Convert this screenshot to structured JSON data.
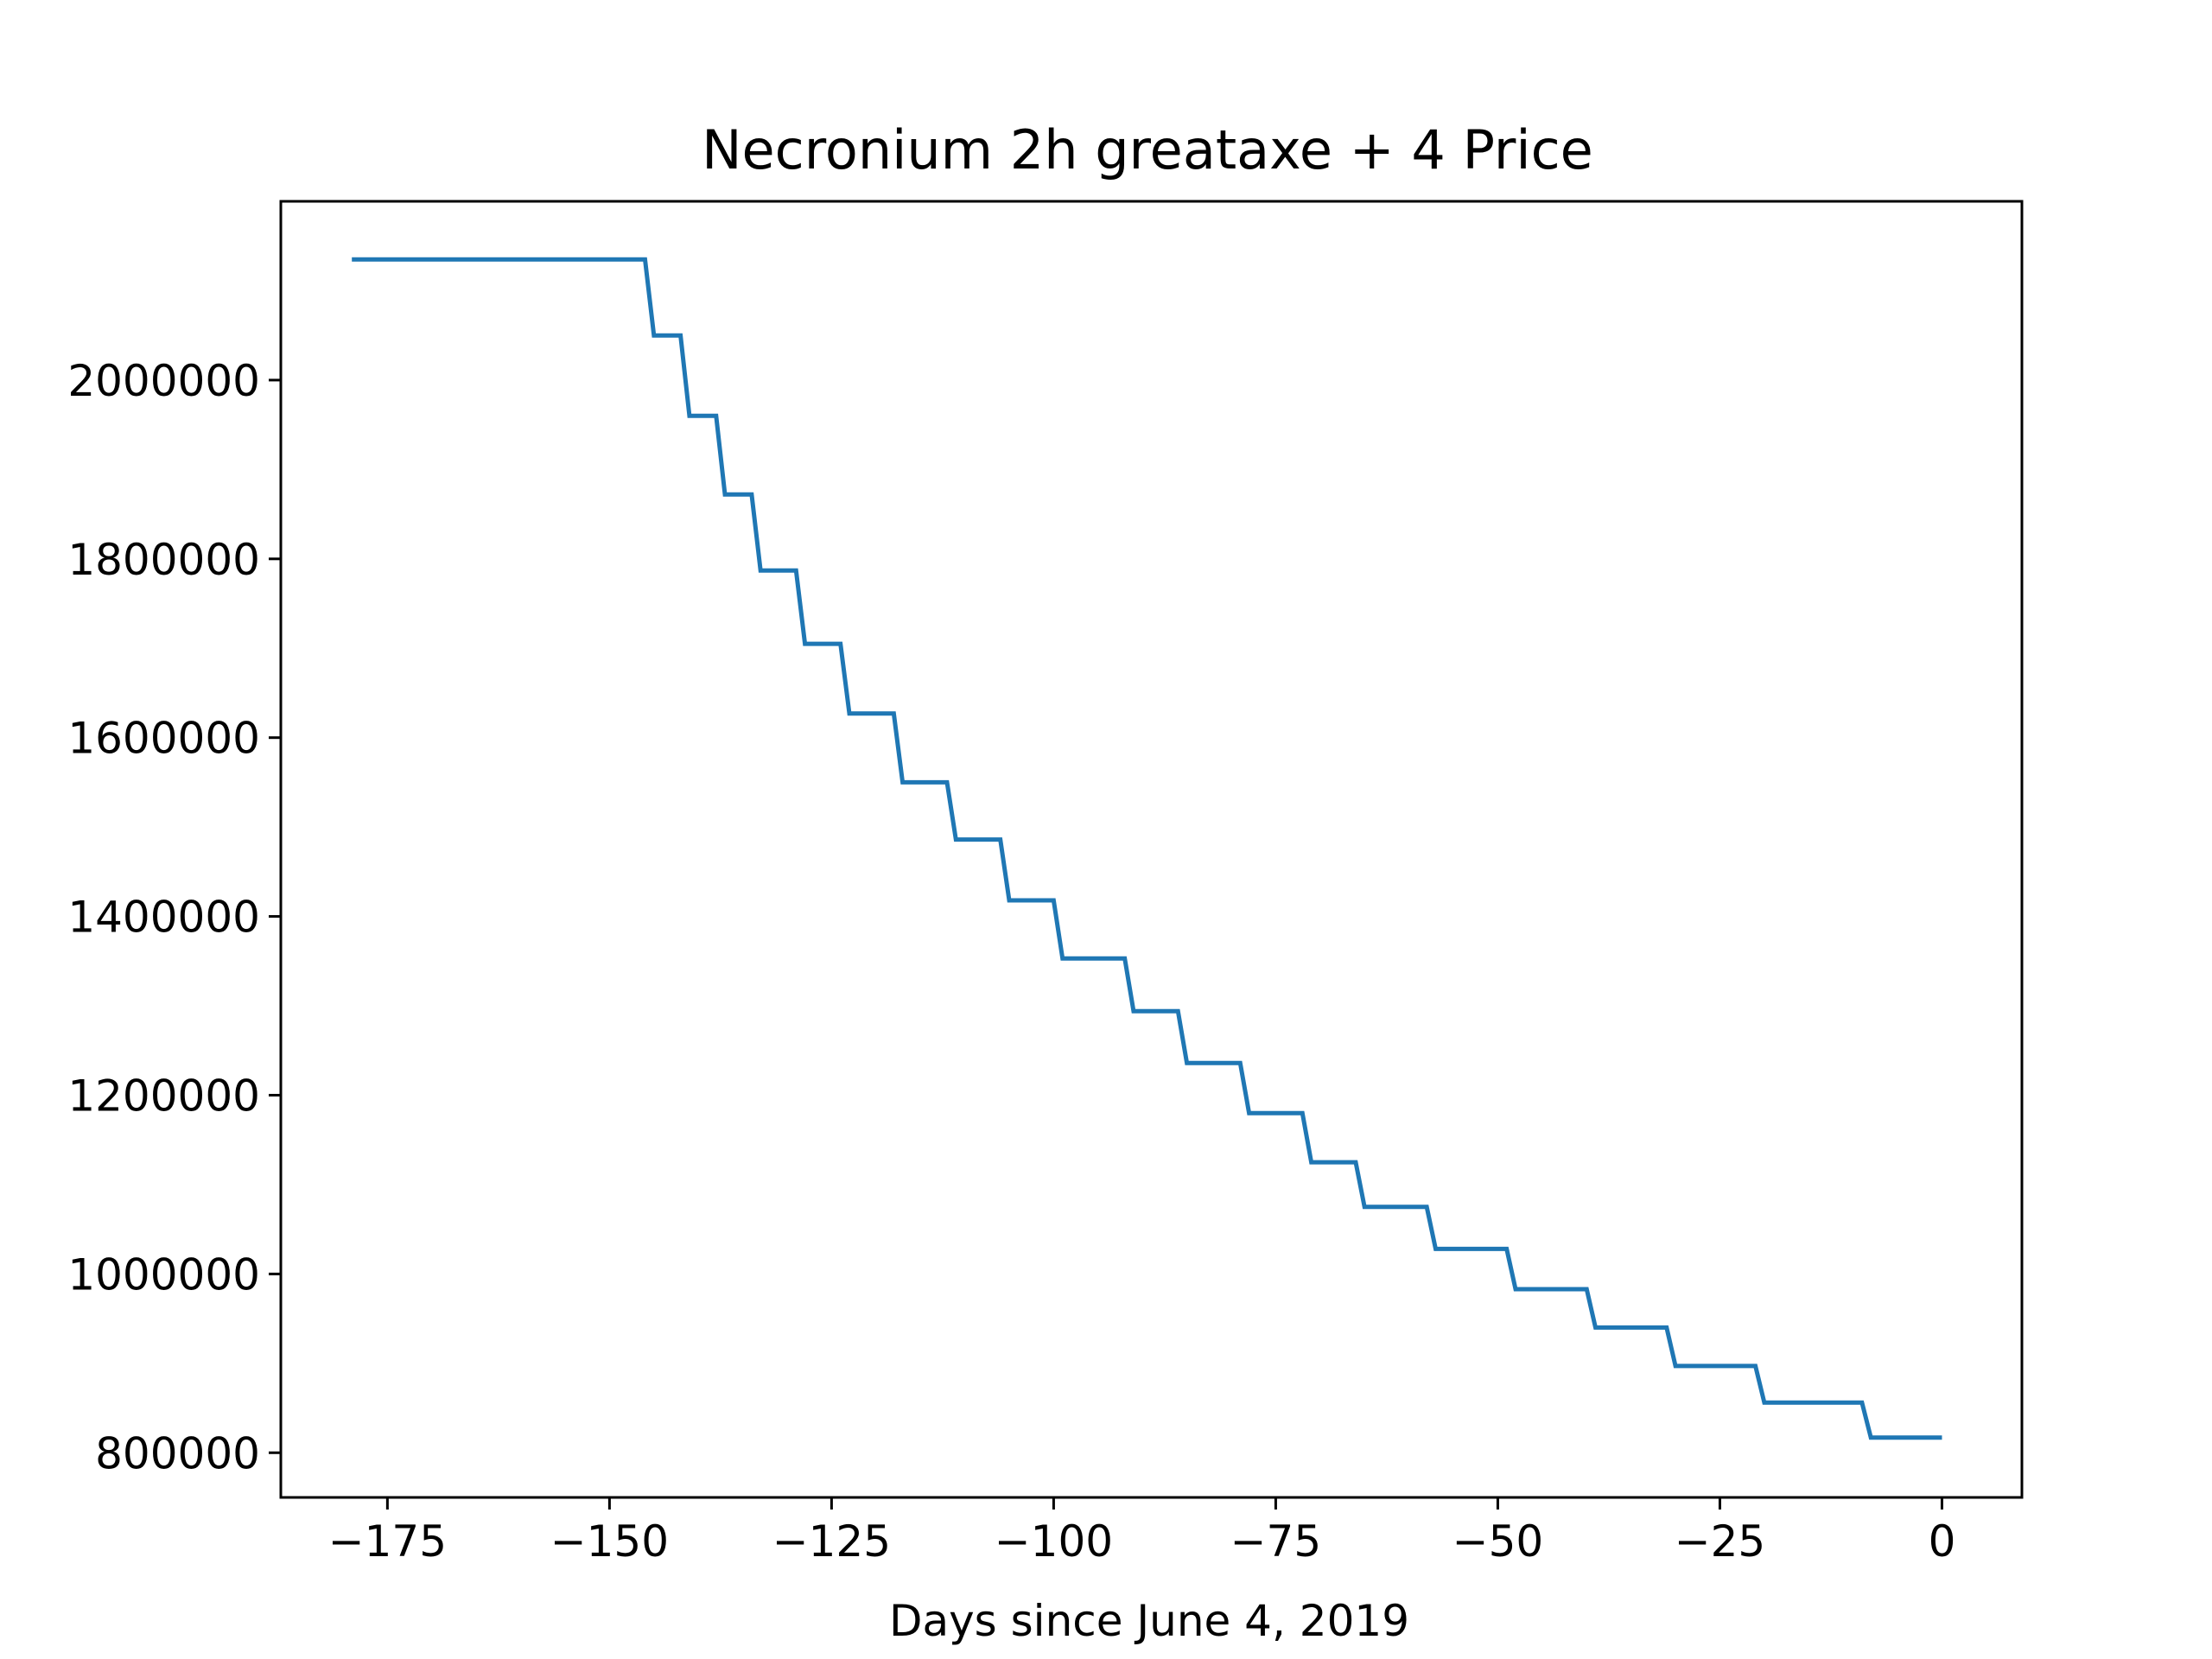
{
  "chart_data": {
    "type": "line",
    "title": "Necronium 2h greataxe + 4 Price",
    "xlabel": "Days since June 4, 2019",
    "ylabel": "",
    "xlim": [
      -187,
      9
    ],
    "ylim": [
      750000,
      2200000
    ],
    "grid": false,
    "legend": "none",
    "line_color": "#1f77b4",
    "x_ticks": [
      -175,
      -150,
      -125,
      -100,
      -75,
      -50,
      -25,
      0
    ],
    "x_tick_labels": [
      "−175",
      "−150",
      "−125",
      "−100",
      "−75",
      "−50",
      "−25",
      "0"
    ],
    "y_ticks": [
      800000,
      1000000,
      1200000,
      1400000,
      1600000,
      1800000,
      2000000
    ],
    "y_tick_labels": [
      "800000",
      "1000000",
      "1200000",
      "1400000",
      "1600000",
      "1800000",
      "2000000"
    ],
    "series": [
      {
        "x": [
          -179,
          -146,
          -145,
          -142,
          -141,
          -138,
          -137,
          -134,
          -133,
          -129,
          -128,
          -124,
          -123,
          -118,
          -117,
          -112,
          -111,
          -106,
          -105,
          -100,
          -99,
          -92,
          -91,
          -86,
          -85,
          -79,
          -78,
          -72,
          -71,
          -66,
          -65,
          -58,
          -57,
          -49,
          -48,
          -40,
          -39,
          -31,
          -30,
          -21,
          -20,
          -9,
          -8,
          0
        ],
        "y": [
          2135000,
          2135000,
          2050000,
          2050000,
          1960000,
          1960000,
          1872000,
          1872000,
          1787000,
          1787000,
          1705000,
          1705000,
          1627000,
          1627000,
          1550000,
          1550000,
          1486000,
          1486000,
          1418000,
          1418000,
          1353000,
          1353000,
          1294000,
          1294000,
          1236000,
          1236000,
          1180000,
          1180000,
          1125000,
          1125000,
          1075000,
          1075000,
          1028000,
          1028000,
          983000,
          983000,
          940000,
          940000,
          897000,
          897000,
          856000,
          856000,
          817000,
          817000
        ]
      }
    ]
  }
}
